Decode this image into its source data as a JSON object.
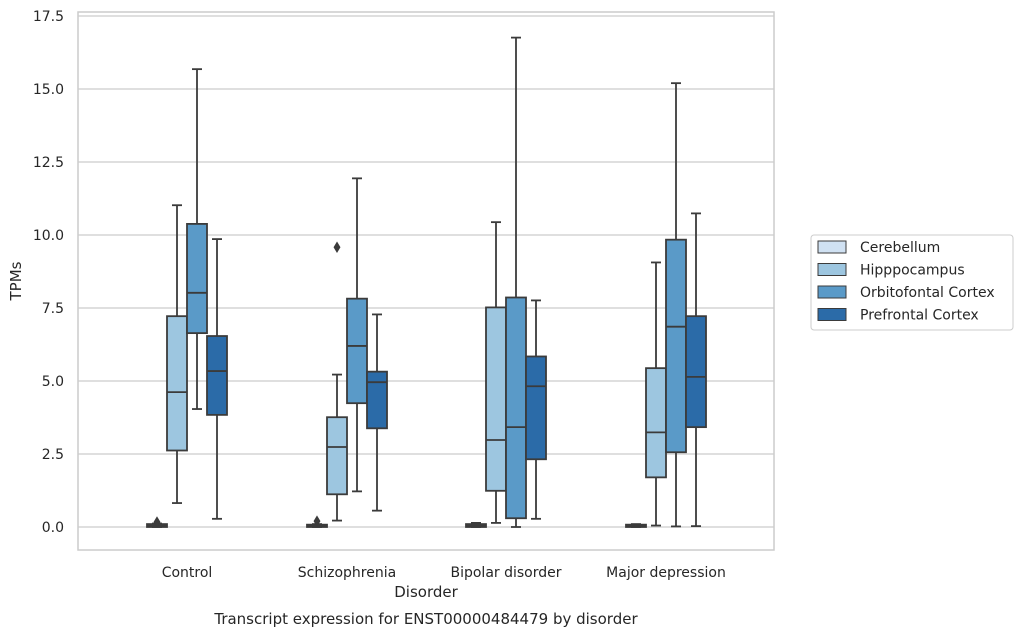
{
  "chart_data": {
    "type": "box",
    "title": "Transcript expression for ENST00000484479 by disorder",
    "xlabel": "Disorder",
    "ylabel": "TPMs",
    "ylim": [
      -0.8,
      17.6
    ],
    "yticks": [
      0.0,
      2.5,
      5.0,
      7.5,
      10.0,
      12.5,
      15.0,
      17.5
    ],
    "ytick_labels": [
      "0.0",
      "2.5",
      "5.0",
      "7.5",
      "10.0",
      "12.5",
      "15.0",
      "17.5"
    ],
    "grid": "horizontal",
    "legend_position": "right",
    "categories": [
      "Control",
      "Schizophrenia",
      "Bipolar disorder",
      "Major depression"
    ],
    "series": [
      {
        "name": "Cerebellum",
        "color": "#d0e1f2",
        "boxes": [
          {
            "whisker_low": 0.0,
            "q1": 0.0,
            "median": 0.05,
            "q3": 0.1,
            "whisker_high": 0.12,
            "outliers": [
              0.17
            ]
          },
          {
            "whisker_low": 0.0,
            "q1": 0.0,
            "median": 0.04,
            "q3": 0.08,
            "whisker_high": 0.1,
            "outliers": [
              0.2
            ]
          },
          {
            "whisker_low": 0.0,
            "q1": 0.0,
            "median": 0.05,
            "q3": 0.1,
            "whisker_high": 0.14,
            "outliers": []
          },
          {
            "whisker_low": 0.0,
            "q1": 0.0,
            "median": 0.04,
            "q3": 0.08,
            "whisker_high": 0.1,
            "outliers": []
          }
        ]
      },
      {
        "name": "Hipppocampus",
        "color": "#9dc6e0",
        "boxes": [
          {
            "whisker_low": 0.82,
            "q1": 2.62,
            "median": 4.62,
            "q3": 7.22,
            "whisker_high": 11.02,
            "outliers": []
          },
          {
            "whisker_low": 0.22,
            "q1": 1.12,
            "median": 2.74,
            "q3": 3.76,
            "whisker_high": 5.22,
            "outliers": [
              9.58
            ]
          },
          {
            "whisker_low": 0.14,
            "q1": 1.24,
            "median": 2.98,
            "q3": 7.52,
            "whisker_high": 10.44,
            "outliers": []
          },
          {
            "whisker_low": 0.05,
            "q1": 1.7,
            "median": 3.24,
            "q3": 5.44,
            "whisker_high": 9.06,
            "outliers": []
          }
        ]
      },
      {
        "name": "Orbitofontal Cortex",
        "color": "#5a9ac8",
        "boxes": [
          {
            "whisker_low": 4.04,
            "q1": 6.64,
            "median": 8.02,
            "q3": 10.38,
            "whisker_high": 15.68,
            "outliers": []
          },
          {
            "whisker_low": 1.22,
            "q1": 4.24,
            "median": 6.2,
            "q3": 7.82,
            "whisker_high": 11.94,
            "outliers": []
          },
          {
            "whisker_low": 0.0,
            "q1": 0.3,
            "median": 3.42,
            "q3": 7.86,
            "whisker_high": 16.76,
            "outliers": []
          },
          {
            "whisker_low": 0.02,
            "q1": 2.56,
            "median": 6.86,
            "q3": 9.84,
            "whisker_high": 15.2,
            "outliers": []
          }
        ]
      },
      {
        "name": "Prefrontal Cortex",
        "color": "#2b6ba8",
        "boxes": [
          {
            "whisker_low": 0.28,
            "q1": 3.84,
            "median": 5.34,
            "q3": 6.54,
            "whisker_high": 9.86,
            "outliers": []
          },
          {
            "whisker_low": 0.56,
            "q1": 3.38,
            "median": 4.96,
            "q3": 5.32,
            "whisker_high": 7.28,
            "outliers": []
          },
          {
            "whisker_low": 0.28,
            "q1": 2.32,
            "median": 4.82,
            "q3": 5.84,
            "whisker_high": 7.76,
            "outliers": []
          },
          {
            "whisker_low": 0.03,
            "q1": 3.42,
            "median": 5.14,
            "q3": 7.22,
            "whisker_high": 10.74,
            "outliers": []
          }
        ]
      }
    ]
  }
}
